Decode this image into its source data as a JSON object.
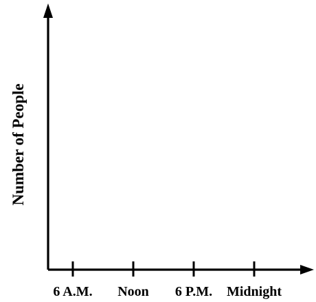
{
  "chart_data": {
    "type": "line",
    "title": "",
    "xlabel": "",
    "ylabel": "Number of People",
    "categories": [
      "6 A.M.",
      "Noon",
      "6 P.M.",
      "Midnight"
    ],
    "series": [],
    "grid": false,
    "legend": "none",
    "axis_color": "#000000"
  }
}
